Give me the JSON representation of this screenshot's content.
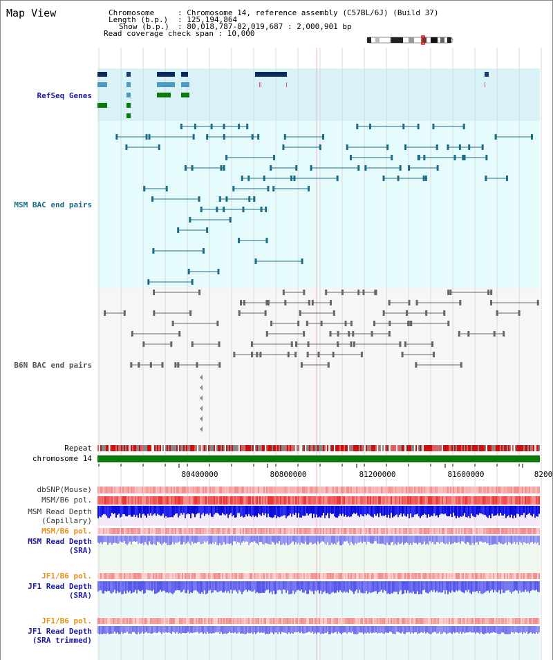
{
  "page": {
    "title": "Map View"
  },
  "info": {
    "chromosome_key": "Chromosome",
    "chromosome_val": ": Chromosome 14, reference assembly (C57BL/6J) (Build 37)",
    "length_key": "Length (b.p.)",
    "length_val": ": 125,194,864",
    "show_key": "Show (b.p.)",
    "show_val": ": 80,018,787-82,019,687 : 2,000,901 bp",
    "coverage": "Read coverage check span : 10,000"
  },
  "tracks": {
    "refseq": "RefSeq Genes",
    "msm_bac": "MSM BAC end pairs",
    "b6n_bac": "B6N BAC end pairs",
    "repeat": "Repeat",
    "chromosome": "chromosome 14",
    "dbsnp": "dbSNP(Mouse)",
    "msm_b6_pol": "MSM/B6 pol.",
    "msm_depth_cap": "MSM Read Depth\n(Capillary)",
    "msm_b6_pol2": "MSM/B6 pol.",
    "msm_depth_sra": "MSM Read Depth\n(SRA)",
    "jf1_b6_pol": "JF1/B6 pol.",
    "jf1_depth_sra": "JF1 Read Depth\n(SRA)",
    "jf1_b6_pol2": "JF1/B6 pol.",
    "jf1_depth_trim": "JF1 Read Depth\n(SRA trimmed)"
  },
  "axis": {
    "ticks": [
      "80400000",
      "80800000",
      "81200000",
      "81600000",
      "8200"
    ]
  },
  "colors": {
    "refseq_bg": "#d8f2f8",
    "msm_bg": "#e6fbfb",
    "msm_feature": "#1c6c84",
    "b6n_feature": "#666666",
    "chromosome_bar": "#0a7a0a",
    "label_blue": "#1a1aa0",
    "label_orange": "#e8901c"
  }
}
